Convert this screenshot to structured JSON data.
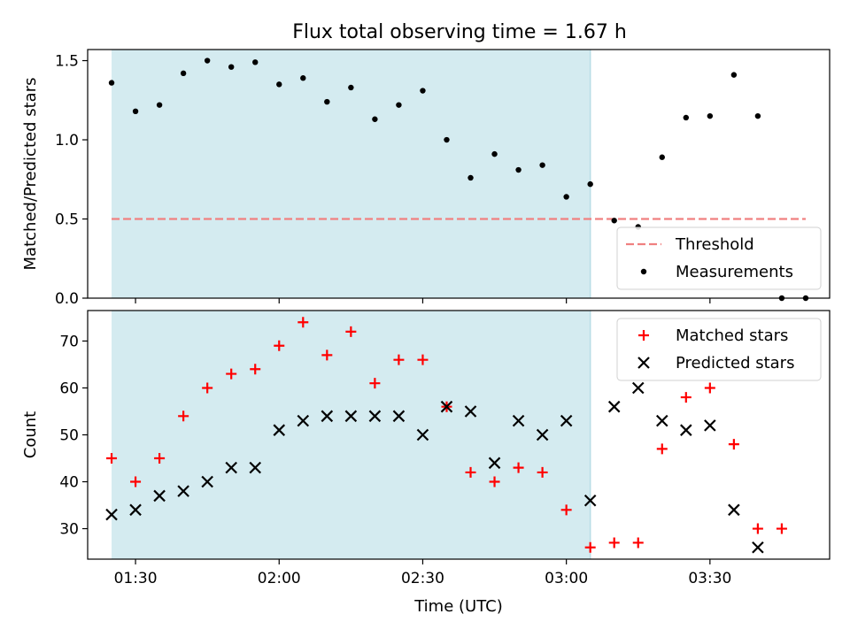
{
  "chart_data": [
    {
      "type": "scatter",
      "title": "Flux total observing time = 1.67 h",
      "xlabel": "",
      "ylabel": "Matched/Predicted stars",
      "xlim": [
        80,
        235
      ],
      "ylim": [
        0,
        1.57
      ],
      "yticks": [
        0.0,
        0.5,
        1.0,
        1.5
      ],
      "ytick_labels": [
        "0.0",
        "0.5",
        "1.0",
        "1.5"
      ],
      "shaded_region": {
        "x_start": 85,
        "x_end": 185,
        "color": "#d4ebf0"
      },
      "threshold": {
        "name": "Threshold",
        "value": 0.5,
        "x_start": 85,
        "x_end": 230,
        "color": "#f08080"
      },
      "series": [
        {
          "name": "Measurements",
          "marker": "dot",
          "color": "#000000",
          "x": [
            85,
            90,
            95,
            100,
            105,
            110,
            115,
            120,
            125,
            130,
            135,
            140,
            145,
            150,
            155,
            160,
            165,
            170,
            175,
            180,
            185,
            190,
            195,
            200,
            205,
            210,
            215,
            220,
            225,
            230
          ],
          "y": [
            1.36,
            1.18,
            1.22,
            1.42,
            1.5,
            1.46,
            1.49,
            1.35,
            1.39,
            1.24,
            1.33,
            1.13,
            1.22,
            1.31,
            1.0,
            0.76,
            0.91,
            0.81,
            0.84,
            0.64,
            0.72,
            0.49,
            0.45,
            0.89,
            1.14,
            1.15,
            1.41,
            1.15,
            0.0,
            0.0
          ]
        }
      ],
      "legend": {
        "position": "bottom-right",
        "entries": [
          "Threshold",
          "Measurements"
        ]
      }
    },
    {
      "type": "scatter",
      "title": "",
      "xlabel": "Time (UTC)",
      "ylabel": "Count",
      "xlim": [
        80,
        235
      ],
      "ylim": [
        23.5,
        76.5
      ],
      "yticks": [
        30,
        40,
        50,
        60,
        70
      ],
      "ytick_labels": [
        "30",
        "40",
        "50",
        "60",
        "70"
      ],
      "xticks": [
        90,
        120,
        150,
        180,
        210
      ],
      "xtick_labels": [
        "01:30",
        "02:00",
        "02:30",
        "03:00",
        "03:30"
      ],
      "shaded_region": {
        "x_start": 85,
        "x_end": 185,
        "color": "#d4ebf0"
      },
      "series": [
        {
          "name": "Matched stars",
          "marker": "plus",
          "color": "#ff0000",
          "x": [
            85,
            90,
            95,
            100,
            105,
            110,
            115,
            120,
            125,
            130,
            135,
            140,
            145,
            150,
            155,
            160,
            165,
            170,
            175,
            180,
            185,
            190,
            195,
            200,
            205,
            210,
            215,
            220,
            225
          ],
          "y": [
            45,
            40,
            45,
            54,
            60,
            63,
            64,
            69,
            74,
            67,
            72,
            61,
            66,
            66,
            56,
            42,
            40,
            43,
            42,
            34,
            26,
            27,
            27,
            47,
            58,
            60,
            48,
            30,
            30
          ]
        },
        {
          "name": "Predicted stars",
          "marker": "x",
          "color": "#000000",
          "x": [
            85,
            90,
            95,
            100,
            105,
            110,
            115,
            120,
            125,
            130,
            135,
            140,
            145,
            150,
            155,
            160,
            165,
            170,
            175,
            180,
            185,
            190,
            195,
            200,
            205,
            210,
            215,
            220
          ],
          "y": [
            33,
            34,
            37,
            38,
            40,
            43,
            43,
            51,
            53,
            54,
            54,
            54,
            54,
            50,
            56,
            55,
            44,
            53,
            50,
            53,
            36,
            56,
            60,
            53,
            51,
            52,
            34,
            26
          ]
        }
      ],
      "legend": {
        "position": "top-right",
        "entries": [
          "Matched stars",
          "Predicted stars"
        ]
      }
    }
  ]
}
